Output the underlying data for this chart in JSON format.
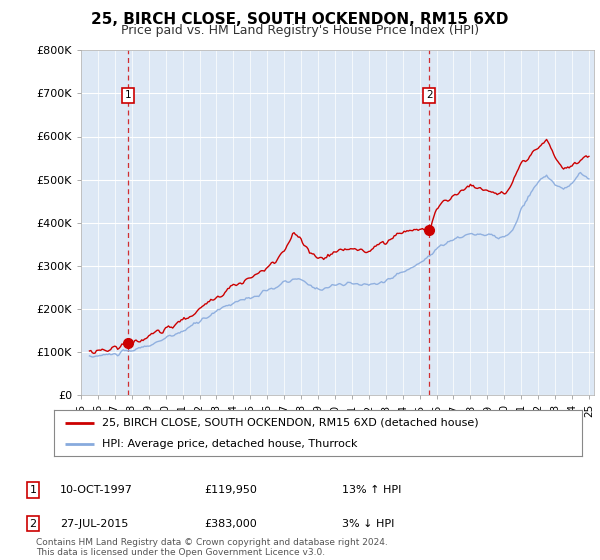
{
  "title": "25, BIRCH CLOSE, SOUTH OCKENDON, RM15 6XD",
  "subtitle": "Price paid vs. HM Land Registry's House Price Index (HPI)",
  "ylim": [
    0,
    800000
  ],
  "xlim_start": 1995.3,
  "xlim_end": 2025.3,
  "legend_line1": "25, BIRCH CLOSE, SOUTH OCKENDON, RM15 6XD (detached house)",
  "legend_line2": "HPI: Average price, detached house, Thurrock",
  "sale1_date": "10-OCT-1997",
  "sale1_price": "£119,950",
  "sale1_hpi": "13% ↑ HPI",
  "sale1_year": 1997.78,
  "sale1_value": 119950,
  "sale2_date": "27-JUL-2015",
  "sale2_price": "£383,000",
  "sale2_hpi": "3% ↓ HPI",
  "sale2_year": 2015.56,
  "sale2_value": 383000,
  "footnote": "Contains HM Land Registry data © Crown copyright and database right 2024.\nThis data is licensed under the Open Government Licence v3.0.",
  "color_price_paid": "#cc0000",
  "color_hpi": "#88aadd",
  "color_dashed": "#cc0000",
  "background_plot": "#dde8f5",
  "background_fig": "#ffffff",
  "grid_color": "#ffffff",
  "title_fontsize": 11,
  "subtitle_fontsize": 9
}
